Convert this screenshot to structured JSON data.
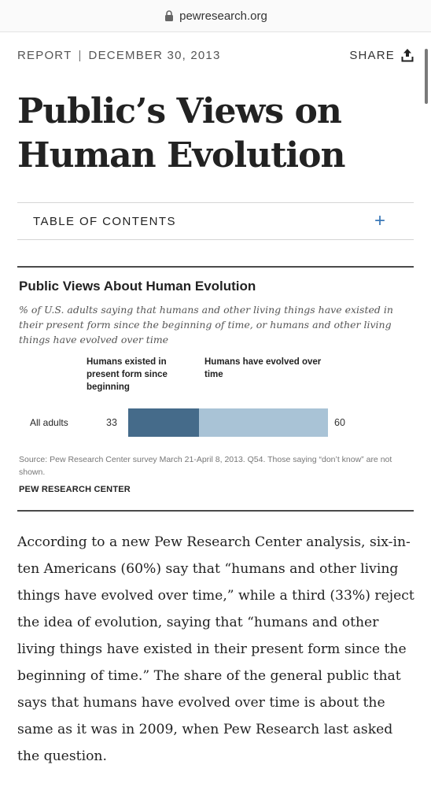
{
  "browser": {
    "url": "pewresearch.org",
    "lock_icon": "lock-icon"
  },
  "meta": {
    "category": "REPORT",
    "separator": "|",
    "date": "DECEMBER 30, 2013",
    "share_label": "SHARE",
    "share_icon": "share-upload-icon"
  },
  "article": {
    "title": "Public’s Views on Human Evolution",
    "toc_label": "TABLE OF CONTENTS",
    "toc_icon": "plus-icon",
    "body": "According to a new Pew Research Center analysis, six-in-ten Americans (60%) say that “humans and other living things have evolved over time,” while a third (33%) reject the idea of evolution, saying that “humans and other living things have existed in their present form since the beginning of time.” The share of the general public that says that humans have evolved over time is about the same as it was in 2009, when Pew Research last asked the question."
  },
  "chart_data": {
    "type": "bar",
    "orientation": "horizontal-stacked",
    "title": "Public Views About Human Evolution",
    "subtitle": "% of U.S. adults saying that humans and other living things have existed in their present form since the beginning of time, or humans and other living things have evolved over time",
    "categories": [
      "All adults"
    ],
    "series": [
      {
        "name": "Humans existed in present form since beginning",
        "values": [
          33
        ],
        "color": "#456b8a"
      },
      {
        "name": "Humans have evolved over time",
        "values": [
          60
        ],
        "color": "#a9c3d6"
      }
    ],
    "source": "Source: Pew Research Center survey March 21-April 8, 2013. Q54. Those saying “don’t know” are not shown.",
    "organization": "PEW RESEARCH CENTER"
  }
}
